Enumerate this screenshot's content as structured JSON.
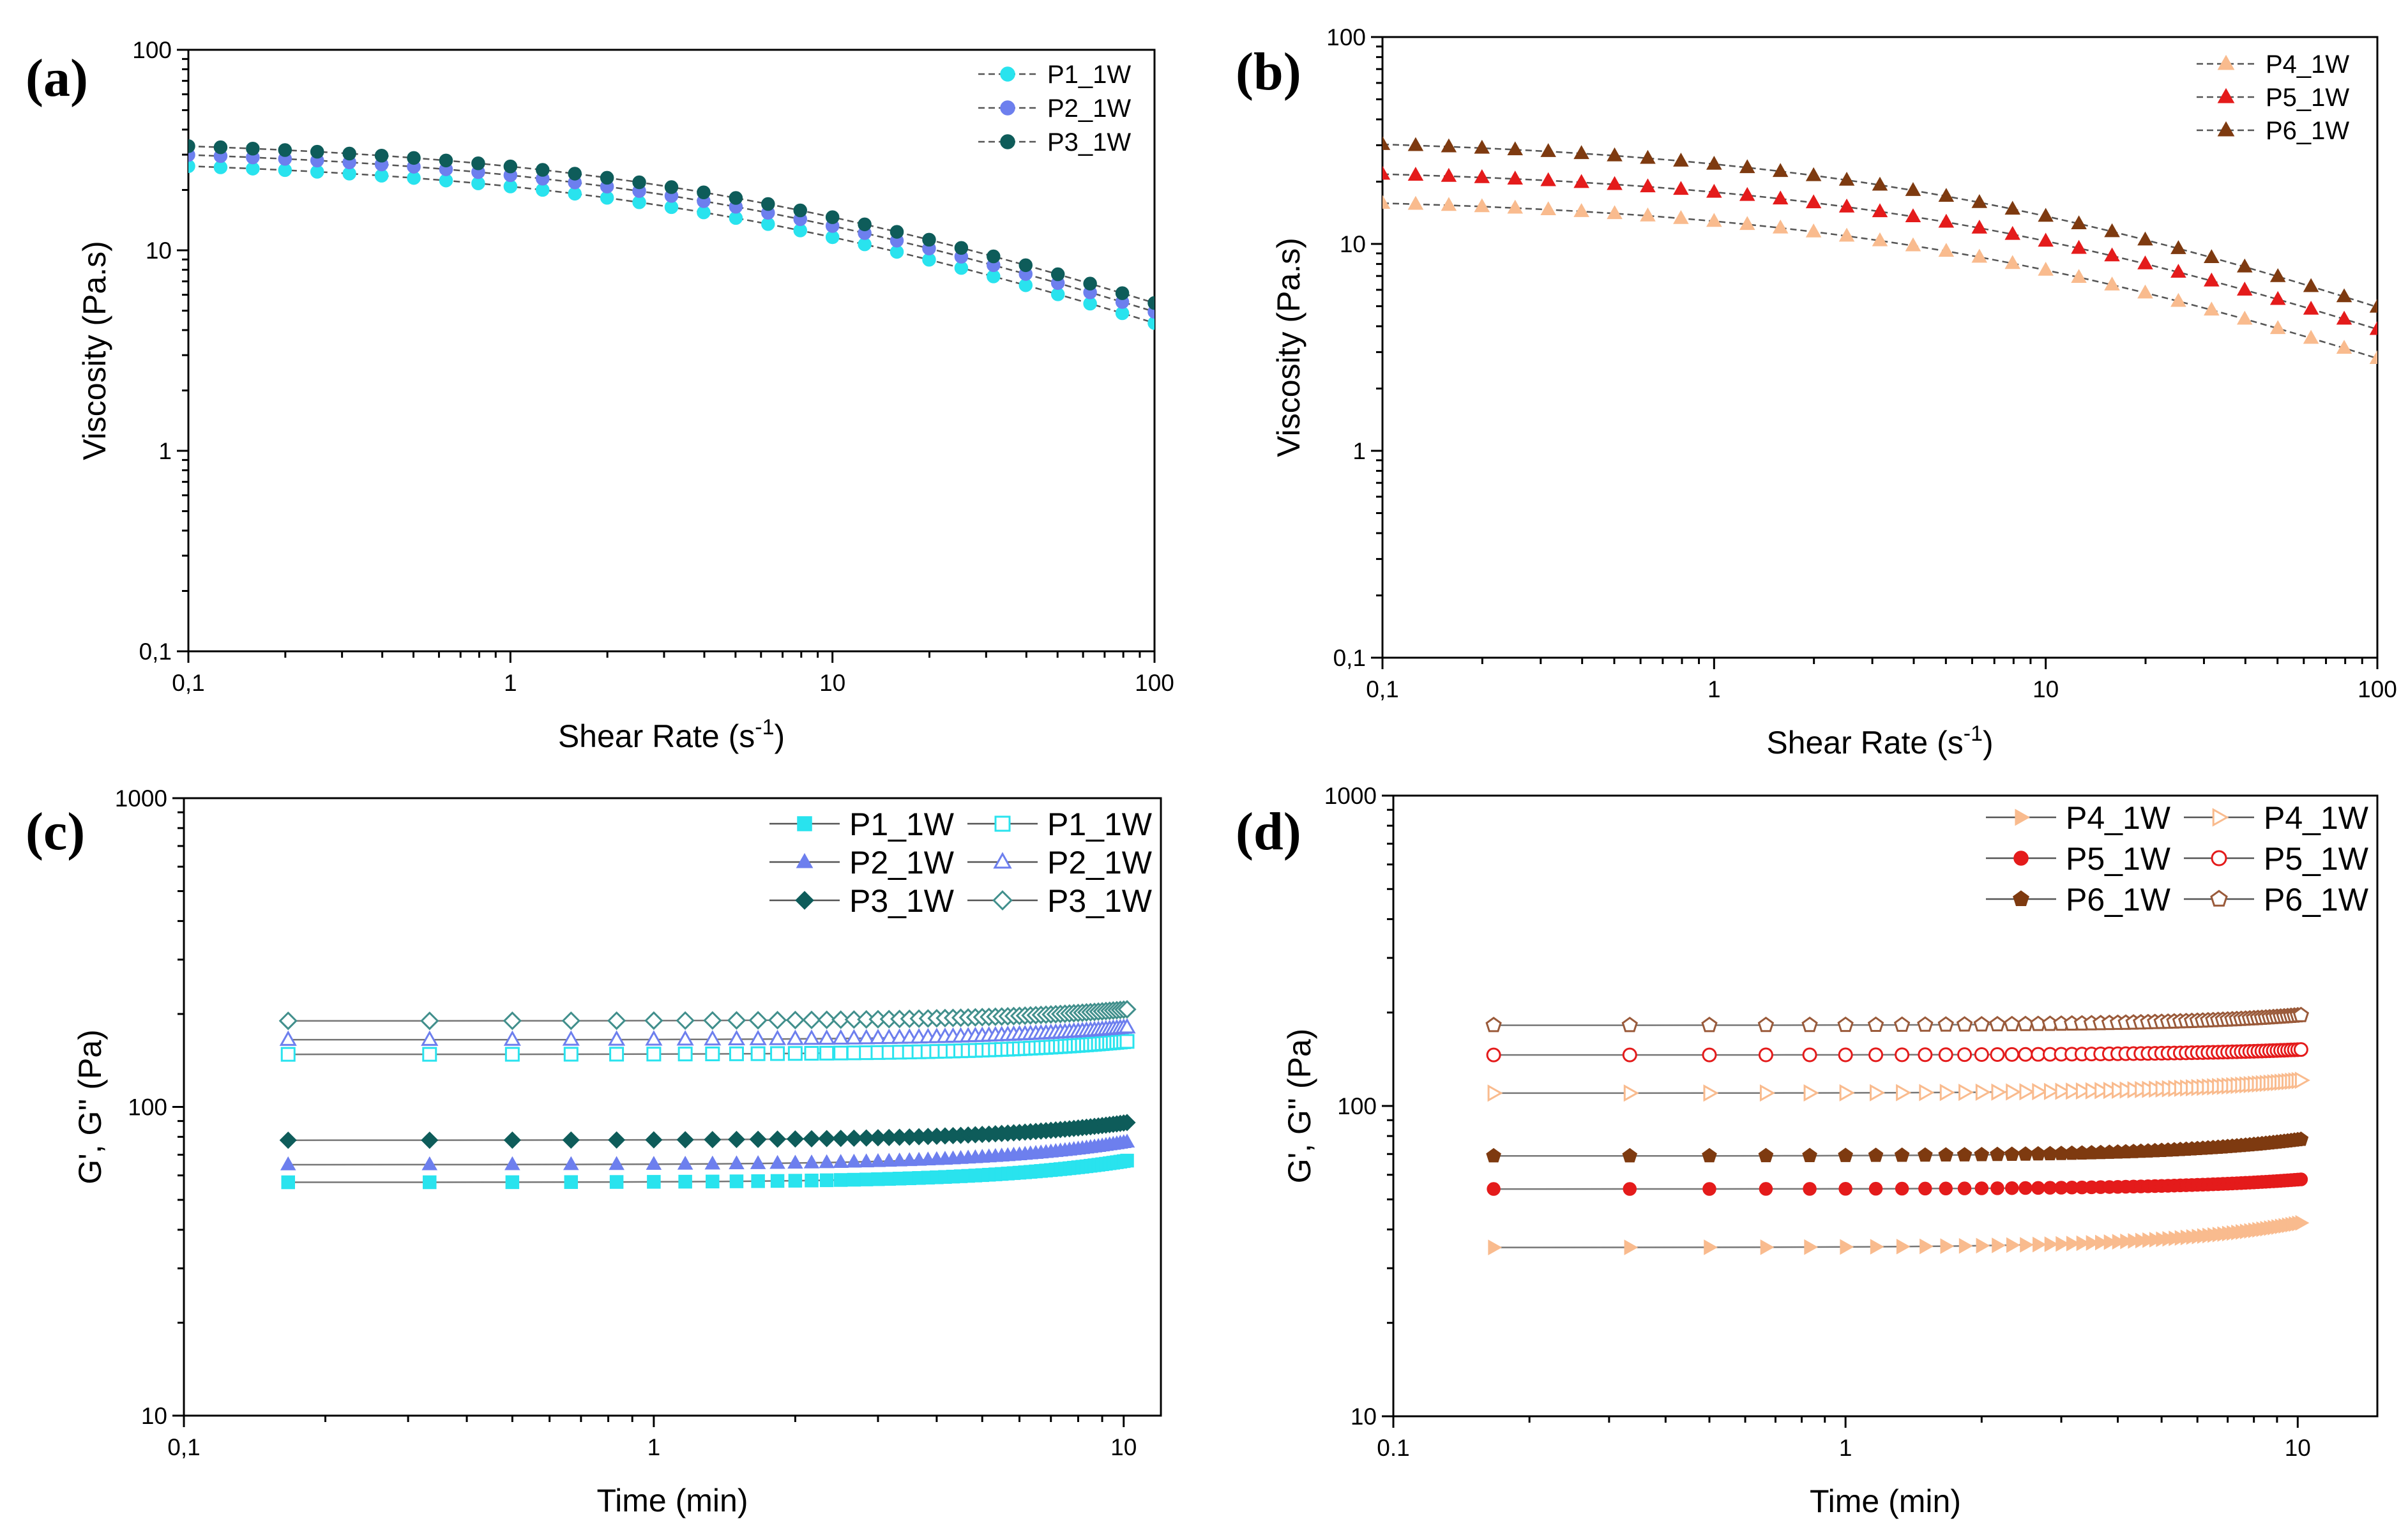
{
  "chart_data": [
    {
      "panel": "(a)",
      "type": "scatter",
      "xscale": "log",
      "yscale": "log",
      "xlabel": "Shear Rate (s",
      "xlabel_sup": "-1",
      "xlabel_tail": ")",
      "ylabel": "Viscosity (Pa.s)",
      "xlim": [
        0.1,
        100
      ],
      "ylim": [
        0.1,
        100
      ],
      "xticks": [
        0.1,
        1,
        10,
        100
      ],
      "xtick_labels": [
        "0,1",
        "1",
        "10",
        "100"
      ],
      "yticks": [
        0.1,
        1,
        10,
        100
      ],
      "ytick_labels": [
        "0,1",
        "1",
        "10",
        "100"
      ],
      "legend_position": "top-right",
      "series": [
        {
          "name": "P1_1W",
          "color": "#29E3EE",
          "marker": "circle",
          "fill": "filled",
          "eta0": 29,
          "lambda": 0.2,
          "n": 0.58
        },
        {
          "name": "P2_1W",
          "color": "#6D7FEE",
          "marker": "circle",
          "fill": "filled",
          "eta0": 33,
          "lambda": 0.2,
          "n": 0.58
        },
        {
          "name": "P3_1W",
          "color": "#0E5C5A",
          "marker": "circle",
          "fill": "filled",
          "eta0": 36.5,
          "lambda": 0.2,
          "n": 0.58
        }
      ]
    },
    {
      "panel": "(b)",
      "type": "scatter",
      "xscale": "log",
      "yscale": "log",
      "xlabel": "Shear Rate (s",
      "xlabel_sup": "-1",
      "xlabel_tail": ")",
      "ylabel": "Viscosity (Pa.s)",
      "xlim": [
        0.1,
        100
      ],
      "ylim": [
        0.1,
        100
      ],
      "xticks": [
        0.1,
        1,
        10,
        100
      ],
      "xtick_labels": [
        "0,1",
        "1",
        "10",
        "100"
      ],
      "yticks": [
        0.1,
        1,
        10,
        100
      ],
      "ytick_labels": [
        "0,1",
        "1",
        "10",
        "100"
      ],
      "legend_position": "top-right",
      "series": [
        {
          "name": "P4_1W",
          "color": "#F9BB8E",
          "marker": "triangle",
          "fill": "filled",
          "eta0": 17,
          "lambda": 0.15,
          "n": 0.6
        },
        {
          "name": "P5_1W",
          "color": "#E41B1B",
          "marker": "triangle",
          "fill": "filled",
          "eta0": 23.5,
          "lambda": 0.15,
          "n": 0.6
        },
        {
          "name": "P6_1W",
          "color": "#7E3A10",
          "marker": "triangle",
          "fill": "filled",
          "eta0": 33,
          "lambda": 0.18,
          "n": 0.6
        }
      ]
    },
    {
      "panel": "(c)",
      "type": "scatter",
      "xscale": "log",
      "yscale": "log",
      "xlabel": "Time (min)",
      "ylabel": "G', G'' (Pa)",
      "xlim": [
        0.1,
        12
      ],
      "ylim": [
        10,
        1000
      ],
      "xticks": [
        0.1,
        1,
        10
      ],
      "xtick_labels": [
        "0,1",
        "1",
        "10"
      ],
      "yticks": [
        10,
        100,
        1000
      ],
      "ytick_labels": [
        "10",
        "100",
        "1000"
      ],
      "legend_position": "top-right",
      "series": [
        {
          "name": "P1_1W",
          "color": "#29E3EE",
          "marker": "square",
          "fill": "filled",
          "v_start": 57,
          "v_end": 67
        },
        {
          "name": "P1_1W",
          "color": "#29E3EE",
          "marker": "square",
          "fill": "open",
          "v_start": 148,
          "v_end": 163
        },
        {
          "name": "P2_1W",
          "color": "#6D7FEE",
          "marker": "triangle",
          "fill": "filled",
          "v_start": 65,
          "v_end": 77
        },
        {
          "name": "P2_1W",
          "color": "#6D7FEE",
          "marker": "triangle",
          "fill": "open",
          "v_start": 165,
          "v_end": 181
        },
        {
          "name": "P3_1W",
          "color": "#0E5C5A",
          "marker": "diamond",
          "fill": "filled",
          "v_start": 78,
          "v_end": 89
        },
        {
          "name": "P3_1W",
          "color": "#418F8C",
          "marker": "diamond",
          "fill": "open",
          "v_start": 190,
          "v_end": 207
        }
      ]
    },
    {
      "panel": "(d)",
      "type": "scatter",
      "xscale": "log",
      "yscale": "log",
      "xlabel": "Time (min)",
      "ylabel": "G', G'' (Pa)",
      "xlim": [
        0.1,
        15
      ],
      "ylim": [
        10,
        1000
      ],
      "xticks": [
        0.1,
        1,
        10
      ],
      "xtick_labels": [
        "0.1",
        "1",
        "10"
      ],
      "yticks": [
        10,
        100,
        1000
      ],
      "ytick_labels": [
        "10",
        "100",
        "1000"
      ],
      "legend_position": "top-right",
      "series": [
        {
          "name": "P4_1W",
          "color": "#F9BB8E",
          "marker": "tri-right",
          "fill": "filled",
          "v_start": 35,
          "v_end": 42
        },
        {
          "name": "P4_1W",
          "color": "#F9BB8E",
          "marker": "tri-right",
          "fill": "open",
          "v_start": 110,
          "v_end": 121
        },
        {
          "name": "P5_1W",
          "color": "#E41B1B",
          "marker": "circle",
          "fill": "filled",
          "v_start": 54,
          "v_end": 58
        },
        {
          "name": "P5_1W",
          "color": "#E41B1B",
          "marker": "circle",
          "fill": "open",
          "v_start": 146,
          "v_end": 152
        },
        {
          "name": "P6_1W",
          "color": "#7E3A10",
          "marker": "pentagon",
          "fill": "filled",
          "v_start": 69,
          "v_end": 78
        },
        {
          "name": "P6_1W",
          "color": "#9A5A3A",
          "marker": "pentagon",
          "fill": "open",
          "v_start": 182,
          "v_end": 196
        }
      ]
    }
  ]
}
